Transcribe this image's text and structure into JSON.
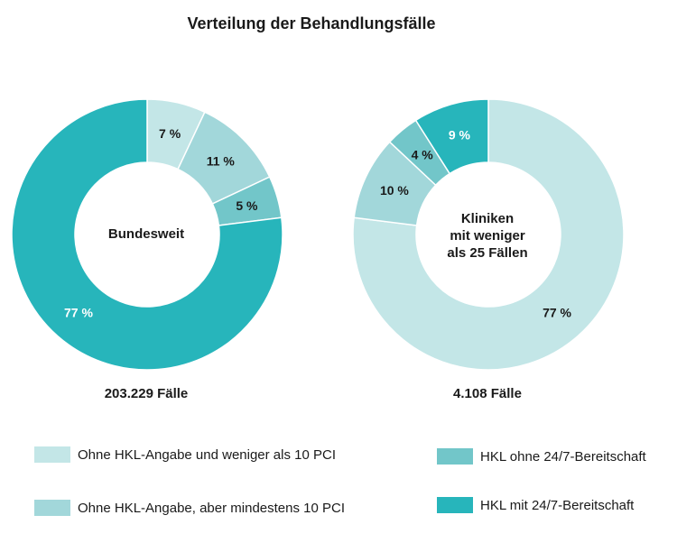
{
  "colors": {
    "light": "#c3e6e7",
    "mid": "#a2d7da",
    "medium": "#72c6c9",
    "dark": "#27b5bb"
  },
  "chart_data": {
    "type": "donut",
    "title": "Verteilung der Behandlungsfälle",
    "categories": [
      "Ohne HKL-Angabe und weniger als 10 PCI",
      "Ohne HKL-Angabe, aber mindestens 10 PCI",
      "HKL ohne 24/7-Bereitschaft",
      "HKL mit 24/7-Bereitschaft"
    ],
    "charts": [
      {
        "center_label": "Bundesweit",
        "total_label": "203.229 Fälle",
        "values": [
          7,
          11,
          5,
          77
        ],
        "value_labels": [
          "7 %",
          "11 %",
          "5 %",
          "77 %"
        ]
      },
      {
        "center_label": "Kliniken\nmit weniger\nals 25 Fällen",
        "total_label": "4.108 Fälle",
        "values": [
          77,
          10,
          4,
          9
        ],
        "value_labels": [
          "77 %",
          "10 %",
          "4 %",
          "9 %"
        ]
      }
    ],
    "legend_placement": "bottom"
  }
}
